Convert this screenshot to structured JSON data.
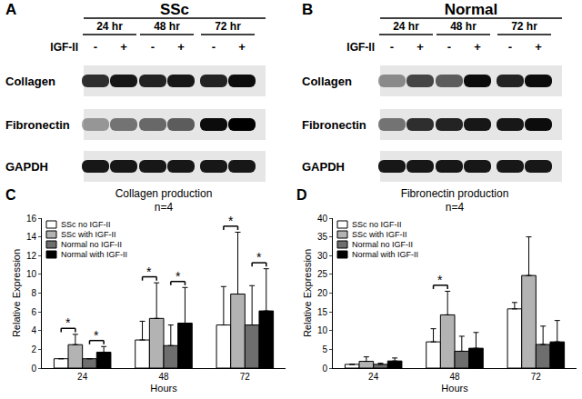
{
  "blots": [
    {
      "panel": "A",
      "title": "SSc",
      "times": [
        "24 hr",
        "48 hr",
        "72 hr"
      ],
      "treatment_label": "IGF-II",
      "treatment": [
        "-",
        "+",
        "-",
        "+",
        "-",
        "+"
      ],
      "rows": [
        {
          "name": "Collagen",
          "bands": [
            0.8,
            0.9,
            0.85,
            0.9,
            0.85,
            0.95
          ]
        },
        {
          "name": "Fibronectin",
          "bands": [
            0.35,
            0.5,
            0.55,
            0.6,
            0.95,
            1.0
          ]
        },
        {
          "name": "GAPDH",
          "bands": [
            0.9,
            0.9,
            0.9,
            0.9,
            0.9,
            0.9
          ]
        }
      ]
    },
    {
      "panel": "B",
      "title": "Normal",
      "times": [
        "24 hr",
        "48 hr",
        "72 hr"
      ],
      "treatment_label": "IGF-II",
      "treatment": [
        "-",
        "+",
        "-",
        "+",
        "-",
        "+"
      ],
      "rows": [
        {
          "name": "Collagen",
          "bands": [
            0.4,
            0.7,
            0.6,
            0.95,
            0.85,
            0.95
          ]
        },
        {
          "name": "Fibronectin",
          "bands": [
            0.5,
            0.8,
            0.85,
            0.9,
            0.9,
            0.95
          ]
        },
        {
          "name": "GAPDH",
          "bands": [
            0.9,
            0.9,
            0.9,
            0.9,
            0.9,
            0.9
          ]
        }
      ]
    }
  ],
  "chart_data": [
    {
      "type": "bar",
      "panel": "C",
      "title": "Collagen production",
      "subtitle": "n=4",
      "x_label": "Hours",
      "y_label": "Relative Expression",
      "categories": [
        "24",
        "48",
        "72"
      ],
      "ylim": [
        0,
        16
      ],
      "yticks": [
        0,
        2,
        4,
        6,
        8,
        10,
        12,
        14,
        16
      ],
      "grid": false,
      "legend": "upper left",
      "series": [
        {
          "name": "SSc no IGF-II",
          "color": "#ffffff",
          "values": [
            1.0,
            3.0,
            4.6
          ],
          "errors": [
            0,
            2.0,
            4.1
          ]
        },
        {
          "name": "SSc with IGF-II",
          "color": "#b3b3b3",
          "values": [
            2.5,
            5.3,
            7.9
          ],
          "errors": [
            1.1,
            3.8,
            6.6
          ]
        },
        {
          "name": "Normal no IGF-II",
          "color": "#6e6e6e",
          "values": [
            1.0,
            2.4,
            4.6
          ],
          "errors": [
            0,
            2.2,
            4.2
          ]
        },
        {
          "name": "Normal with IGF-II",
          "color": "#000000",
          "values": [
            1.7,
            4.8,
            6.1
          ],
          "errors": [
            0.6,
            3.8,
            4.5
          ]
        }
      ],
      "significance": [
        {
          "category": "24",
          "pair": [
            "SSc no IGF-II",
            "SSc with IGF-II"
          ],
          "label": "*"
        },
        {
          "category": "24",
          "pair": [
            "Normal no IGF-II",
            "Normal with IGF-II"
          ],
          "label": "*"
        },
        {
          "category": "48",
          "pair": [
            "SSc no IGF-II",
            "SSc with IGF-II"
          ],
          "label": "*"
        },
        {
          "category": "48",
          "pair": [
            "Normal no IGF-II",
            "Normal with IGF-II"
          ],
          "label": "*"
        },
        {
          "category": "72",
          "pair": [
            "SSc no IGF-II",
            "SSc with IGF-II"
          ],
          "label": "*"
        },
        {
          "category": "72",
          "pair": [
            "Normal no IGF-II",
            "Normal with IGF-II"
          ],
          "label": "*"
        }
      ]
    },
    {
      "type": "bar",
      "panel": "D",
      "title": "Fibronectin production",
      "subtitle": "n=4",
      "x_label": "Hours",
      "y_label": "Relative Expression",
      "categories": [
        "24",
        "48",
        "72"
      ],
      "ylim": [
        0,
        40
      ],
      "yticks": [
        0,
        5,
        10,
        15,
        20,
        25,
        30,
        35,
        40
      ],
      "grid": false,
      "legend": "upper left",
      "series": [
        {
          "name": "SSc no IGF-II",
          "color": "#ffffff",
          "values": [
            1.0,
            7.0,
            15.8
          ],
          "errors": [
            0,
            3.5,
            1.7
          ]
        },
        {
          "name": "SSc with IGF-II",
          "color": "#b3b3b3",
          "values": [
            1.8,
            14.2,
            24.7
          ],
          "errors": [
            1.2,
            6.3,
            10.3
          ]
        },
        {
          "name": "Normal no IGF-II",
          "color": "#6e6e6e",
          "values": [
            1.0,
            4.5,
            6.3
          ],
          "errors": [
            0.3,
            4.0,
            4.9
          ]
        },
        {
          "name": "Normal with IGF-II",
          "color": "#000000",
          "values": [
            1.9,
            5.3,
            7.0
          ],
          "errors": [
            0.8,
            4.2,
            5.7
          ]
        }
      ],
      "significance": [
        {
          "category": "48",
          "pair": [
            "SSc no IGF-II",
            "SSc with IGF-II"
          ],
          "label": "*"
        }
      ]
    }
  ]
}
